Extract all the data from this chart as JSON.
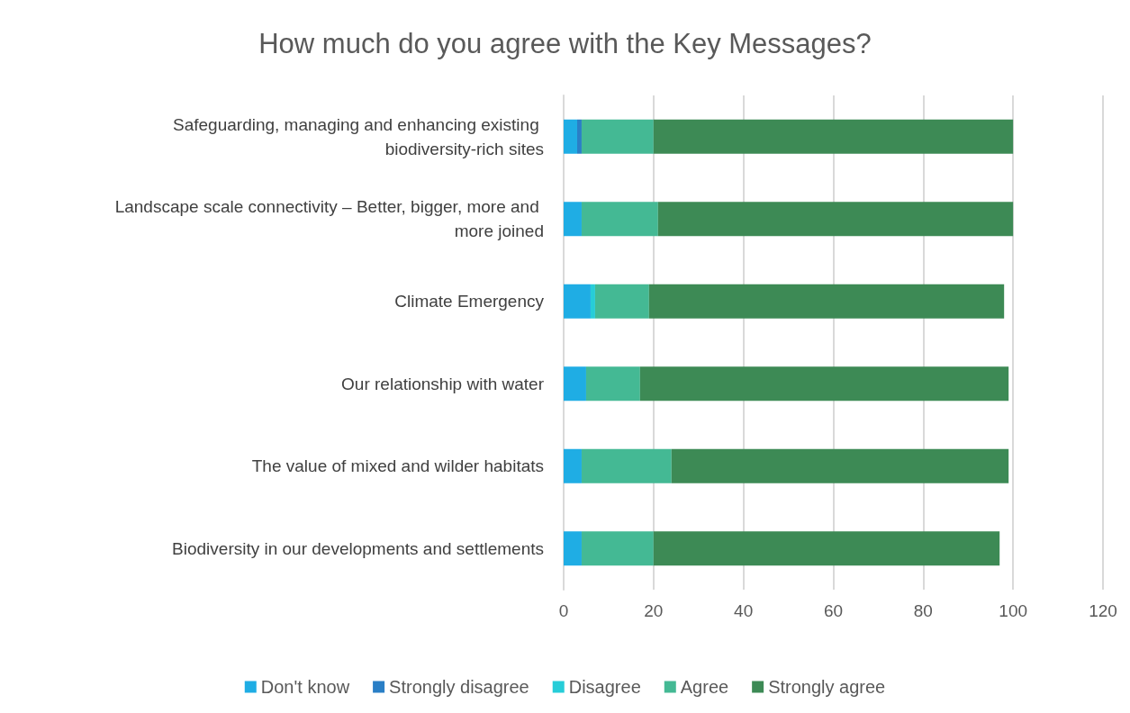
{
  "chart_data": {
    "type": "bar",
    "title": "How much do you agree with the Key Messages?",
    "orientation": "horizontal",
    "stacked": true,
    "categories": [
      "Safeguarding, managing and enhancing existing biodiversity-rich sites",
      "Landscape scale connectivity – Better, bigger, more and more joined",
      "Climate Emergency",
      "Our relationship with water",
      "The value of mixed and wilder habitats",
      "Biodiversity in our developments and settlements"
    ],
    "series": [
      {
        "name": "Don't know",
        "color": "#1fade4",
        "values": [
          3,
          4,
          6,
          5,
          4,
          4
        ]
      },
      {
        "name": "Strongly disagree",
        "color": "#2a7fc6",
        "values": [
          1,
          0,
          0,
          0,
          0,
          0
        ]
      },
      {
        "name": "Disagree",
        "color": "#27cdd8",
        "values": [
          0,
          0,
          1,
          0,
          0,
          0
        ]
      },
      {
        "name": "Agree",
        "color": "#44b994",
        "values": [
          16,
          17,
          12,
          12,
          20,
          16
        ]
      },
      {
        "name": "Strongly agree",
        "color": "#3d8a55",
        "values": [
          80,
          79,
          79,
          82,
          75,
          77
        ]
      }
    ],
    "xlim": [
      0,
      120
    ],
    "xticks": [
      0,
      20,
      40,
      60,
      80,
      100,
      120
    ],
    "grid": "x",
    "legend": "bottom"
  }
}
